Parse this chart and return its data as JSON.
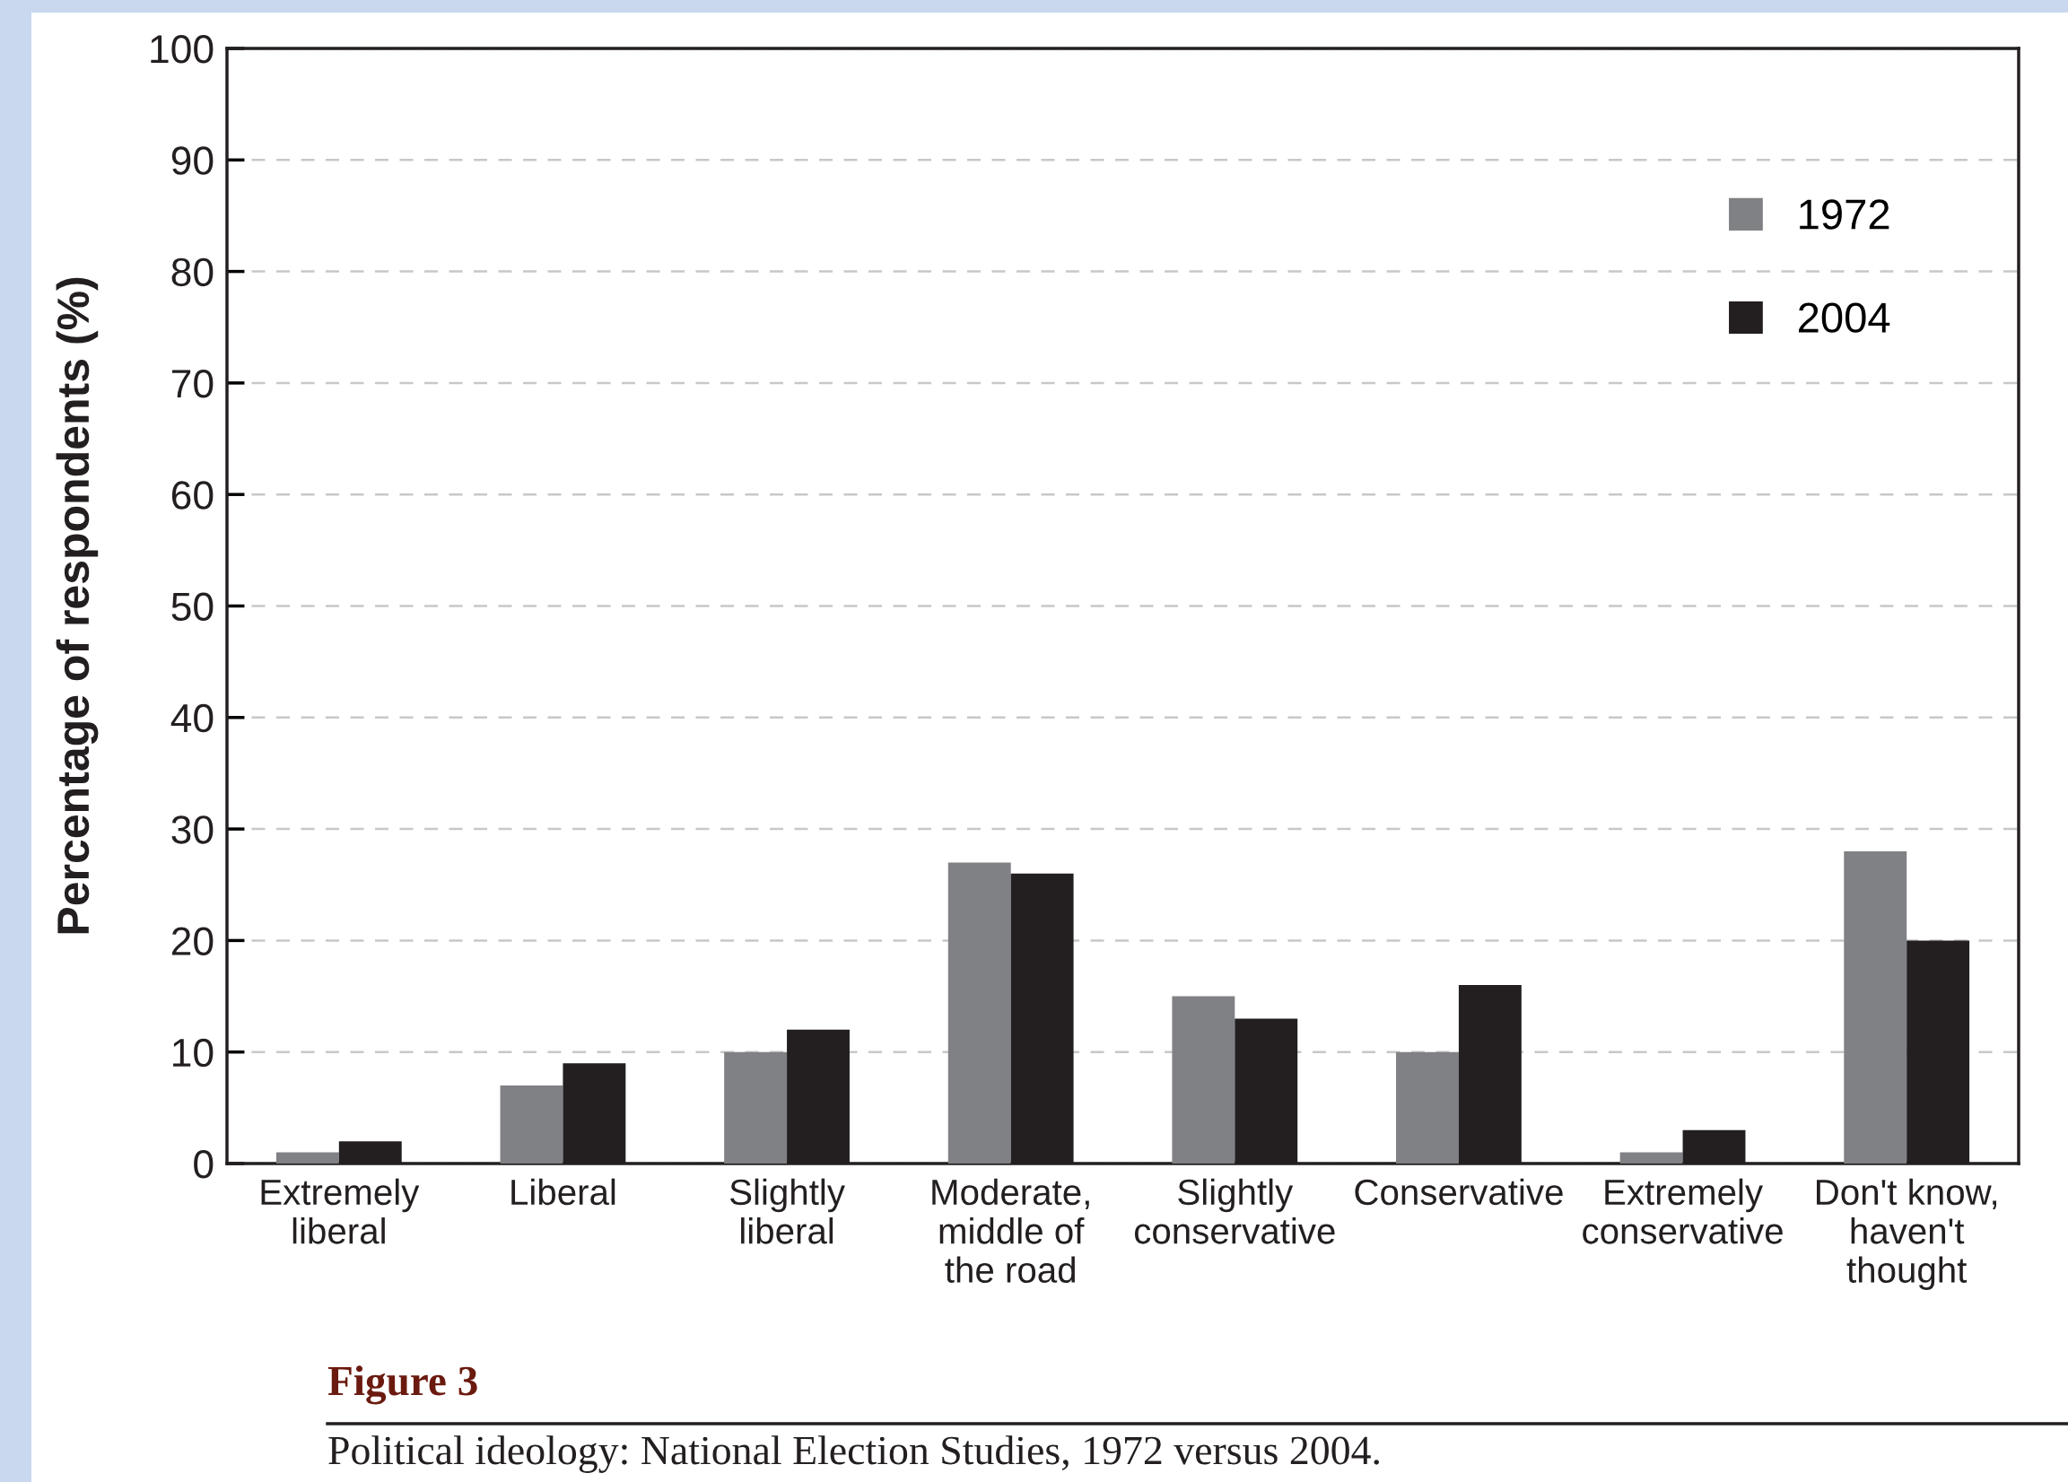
{
  "chart_data": {
    "type": "bar",
    "categories": [
      "Extremely\nliberal",
      "Liberal",
      "Slightly\nliberal",
      "Moderate,\nmiddle of\nthe road",
      "Slightly\nconservative",
      "Conservative",
      "Extremely\nconservative",
      "Don't know,\nhaven't\nthought"
    ],
    "series": [
      {
        "name": "1972",
        "color": "#808184",
        "values": [
          1,
          7,
          10,
          27,
          15,
          10,
          1,
          28
        ]
      },
      {
        "name": "2004",
        "color": "#231f20",
        "values": [
          2,
          9,
          12,
          26,
          13,
          16,
          3,
          20
        ]
      }
    ],
    "ylabel": "Percentage of respondents (%)",
    "ylim": [
      0,
      100
    ],
    "yticks": [
      0,
      10,
      20,
      30,
      40,
      50,
      60,
      70,
      80,
      90,
      100
    ],
    "grid": "y",
    "legend": "top right",
    "annotations": [
      "Figure 3",
      "Political ideology: National Election Studies, 1972 versus 2004."
    ]
  }
}
